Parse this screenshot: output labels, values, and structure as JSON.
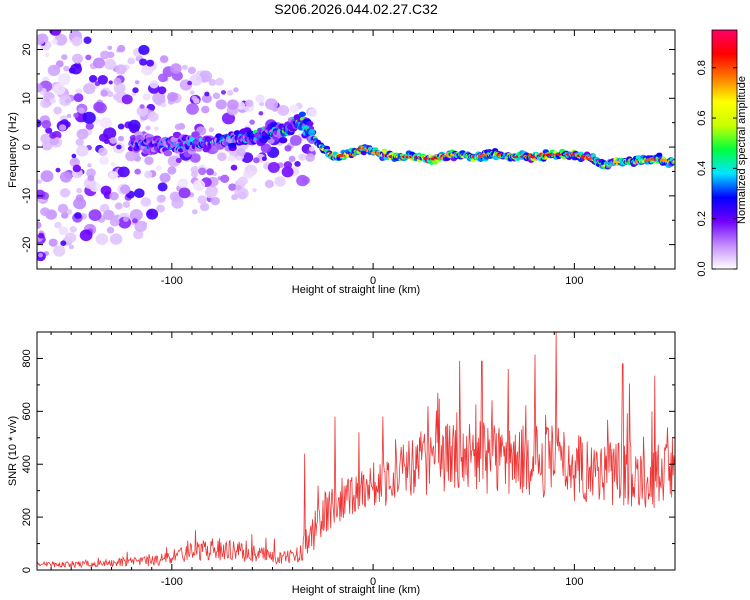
{
  "title": "S206.2026.044.02.27.C32",
  "chart_data": [
    {
      "type": "heatmap",
      "title": "S206.2026.044.02.27.C32",
      "xlabel": "Height of straight line (km)",
      "ylabel": "Frequency (Hz)",
      "xlim": [
        -167,
        150
      ],
      "ylim": [
        -25,
        24
      ],
      "xticks": [
        -100,
        0,
        100
      ],
      "yticks": [
        -20,
        -10,
        0,
        10,
        20
      ],
      "colorbar": {
        "label": "Normalized spectral amplitude",
        "ticks": [
          0.0,
          0.2,
          0.4,
          0.6,
          0.8
        ],
        "range": [
          0.0,
          0.95
        ],
        "colors": [
          "#ffffff",
          "#c38cff",
          "#6f00ff",
          "#0000ff",
          "#00e5ff",
          "#00ff3c",
          "#c8ff00",
          "#ffff00",
          "#ff7a00",
          "#ff0000",
          "#ff0066"
        ]
      },
      "ridge": {
        "description_points_x": [
          -120,
          -100,
          -80,
          -60,
          -45,
          -35,
          -28,
          -20,
          -10,
          -5,
          0,
          10,
          20,
          30,
          40,
          50,
          60,
          70,
          80,
          90,
          100,
          110,
          115,
          120,
          130,
          140,
          150
        ],
        "frequency_hz": [
          0.5,
          0.5,
          1.0,
          2.0,
          3.5,
          5.0,
          1.0,
          -2.0,
          -1.5,
          0.0,
          -1.0,
          -2.0,
          -2.0,
          -2.5,
          -1.5,
          -2.0,
          -1.5,
          -2.0,
          -2.0,
          -1.5,
          -1.5,
          -2.5,
          -4.0,
          -3.0,
          -3.0,
          -2.5,
          -3.0
        ],
        "peak_amplitude": [
          0.3,
          0.35,
          0.4,
          0.45,
          0.5,
          0.55,
          0.5,
          0.85,
          0.8,
          0.85,
          0.7,
          0.9,
          0.85,
          0.9,
          0.7,
          0.85,
          0.75,
          0.9,
          0.9,
          0.85,
          0.9,
          0.8,
          0.6,
          0.7,
          0.75,
          0.8,
          0.7
        ]
      }
    },
    {
      "type": "line",
      "xlabel": "Height of straight line (km)",
      "ylabel": "SNR (10 * v/v)",
      "xlim": [
        -167,
        150
      ],
      "ylim": [
        0,
        900
      ],
      "xticks": [
        -100,
        0,
        100
      ],
      "yticks": [
        0,
        200,
        400,
        600,
        800
      ],
      "series": [
        {
          "name": "SNR",
          "color": "#ee3333",
          "x": [
            -167,
            -150,
            -130,
            -110,
            -100,
            -90,
            -80,
            -70,
            -60,
            -50,
            -45,
            -40,
            -35,
            -30,
            -25,
            -20,
            -15,
            -10,
            -5,
            0,
            10,
            20,
            30,
            40,
            50,
            60,
            70,
            80,
            90,
            100,
            110,
            120,
            130,
            140,
            150
          ],
          "baseline": [
            20,
            20,
            25,
            30,
            45,
            65,
            75,
            70,
            60,
            50,
            40,
            50,
            80,
            130,
            190,
            240,
            270,
            280,
            300,
            320,
            340,
            380,
            400,
            420,
            420,
            410,
            400,
            400,
            400,
            380,
            360,
            360,
            350,
            340,
            380
          ],
          "spread": [
            15,
            15,
            20,
            30,
            40,
            50,
            60,
            55,
            50,
            40,
            35,
            40,
            70,
            110,
            130,
            130,
            120,
            120,
            120,
            130,
            150,
            170,
            180,
            190,
            200,
            200,
            190,
            200,
            200,
            190,
            180,
            190,
            180,
            170,
            170
          ],
          "peaks": [
            {
              "x": 91,
              "y": 915
            },
            {
              "x": 54,
              "y": 790
            },
            {
              "x": 124,
              "y": 780
            },
            {
              "x": 67,
              "y": 760
            },
            {
              "x": 140,
              "y": 735
            },
            {
              "x": -19,
              "y": 580
            },
            {
              "x": -34,
              "y": 440
            }
          ]
        }
      ]
    }
  ]
}
